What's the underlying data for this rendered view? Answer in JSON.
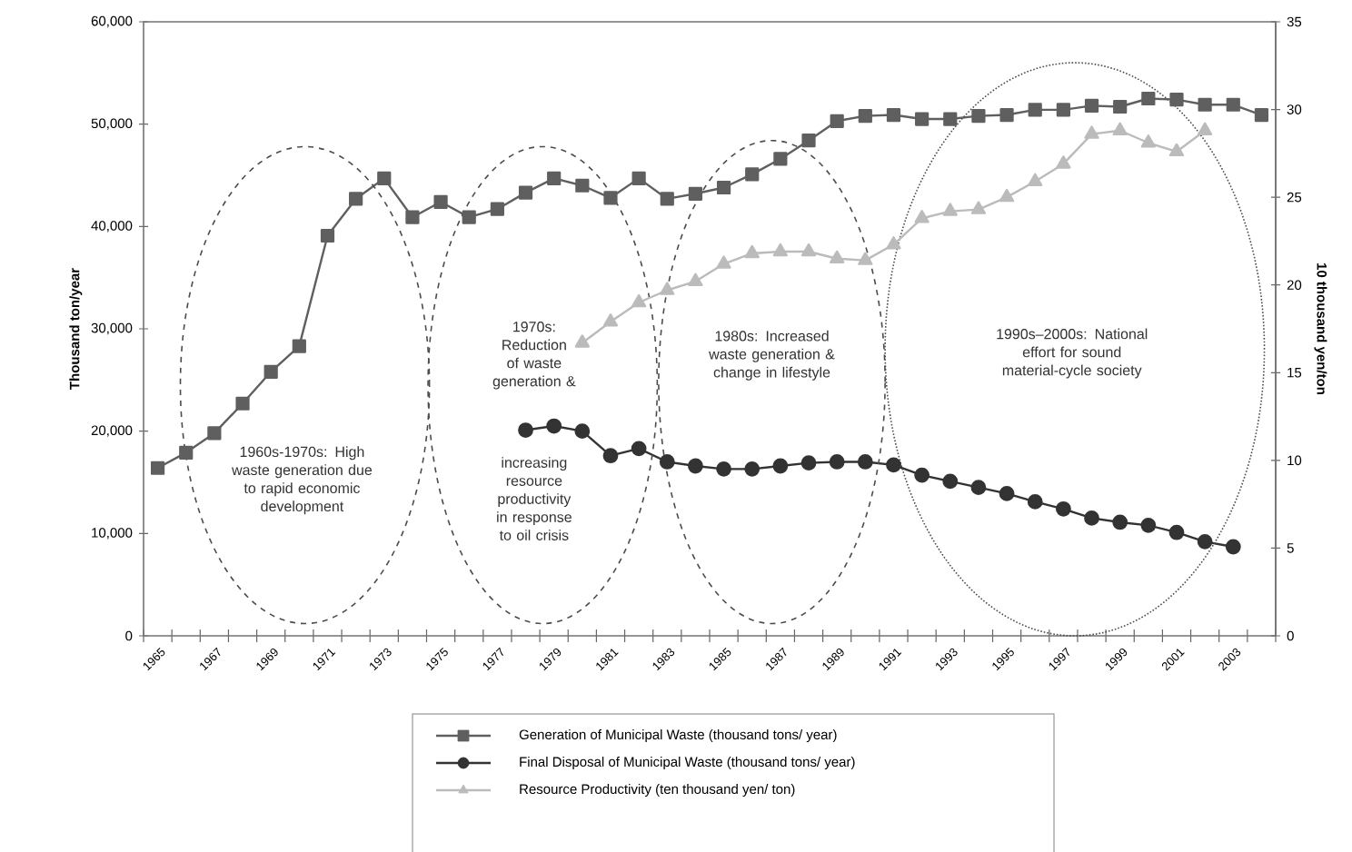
{
  "chart_data": {
    "type": "line",
    "ylabel": "Thousand ton/year",
    "y2label": "10 thousand yen/ton",
    "categories": [
      "1965",
      null,
      "1967",
      null,
      "1969",
      null,
      "1971",
      null,
      "1973",
      null,
      "1975",
      null,
      "1977",
      null,
      "1979",
      null,
      "1981",
      null,
      "1983",
      null,
      "1985",
      null,
      "1987",
      null,
      "1989",
      null,
      "1991",
      null,
      "1993",
      null,
      "1995",
      null,
      "1997",
      null,
      "1999",
      null,
      "2001",
      null,
      "2003",
      null
    ],
    "series": [
      {
        "name": "Generation of Municipal Waste (thousand tons/ year)",
        "color": "#5f5f5f",
        "marker": "square",
        "values": [
          16400,
          17900,
          19800,
          22700,
          25800,
          28300,
          39100,
          42700,
          44700,
          40900,
          42400,
          40900,
          41700,
          43300,
          44700,
          44000,
          42800,
          44700,
          42700,
          43200,
          43800,
          45100,
          46600,
          48400,
          50300,
          50800,
          50900,
          50500,
          50500,
          50800,
          50900,
          51400,
          51400,
          51800,
          51700,
          52500,
          52400,
          51900,
          51900,
          50900
        ]
      },
      {
        "name": "Final Disposal of Municipal Waste (thousand tons/ year)",
        "color": "#333333",
        "marker": "circle",
        "values": [
          null,
          null,
          null,
          null,
          null,
          null,
          null,
          null,
          null,
          null,
          null,
          null,
          null,
          20100,
          20500,
          20000,
          17600,
          18300,
          17000,
          16600,
          16300,
          16300,
          16600,
          16900,
          17000,
          17000,
          16700,
          15700,
          15100,
          14500,
          13900,
          13100,
          12400,
          11500,
          11100,
          10800,
          10100,
          9200,
          8700,
          null
        ]
      },
      {
        "name": "Resource Productivity (ten thousand yen/ ton)",
        "color": "#bbbbbb",
        "marker": "triangle",
        "axis": "y2",
        "values": [
          null,
          null,
          null,
          null,
          null,
          null,
          null,
          null,
          null,
          null,
          null,
          null,
          null,
          null,
          null,
          16.7,
          17.9,
          19.0,
          19.7,
          20.2,
          21.2,
          21.8,
          21.9,
          21.9,
          21.5,
          21.4,
          22.3,
          23.8,
          24.2,
          24.3,
          25.0,
          25.9,
          26.9,
          28.6,
          28.8,
          28.1,
          27.6,
          28.8,
          null,
          null
        ]
      }
    ],
    "ylim": [
      0,
      60000
    ],
    "yticks": [
      0,
      {
        "value": 10000,
        "label": "10,000"
      },
      {
        "value": 20000,
        "label": "20,000"
      },
      {
        "value": 30000,
        "label": "30,000"
      },
      {
        "value": 40000,
        "label": "40,000"
      },
      {
        "value": 50000,
        "label": "50,000"
      },
      {
        "value": 60000,
        "label": "60,000"
      }
    ],
    "y2lim": [
      0,
      35
    ],
    "y2ticks": [
      0,
      5,
      10,
      15,
      20,
      25,
      30,
      35
    ],
    "annotations": [
      "1960s-1970s: High waste generation due to rapid economic development",
      "1970s: Reduction of waste generation &",
      "increasing resource productivity in response to oil crisis",
      "1980s: Increased waste generation & change in lifestyle",
      "1990s–2000s: National effort for sound material-cycle society"
    ],
    "legend": "bottom",
    "line_style": "solid",
    "grid": false
  }
}
